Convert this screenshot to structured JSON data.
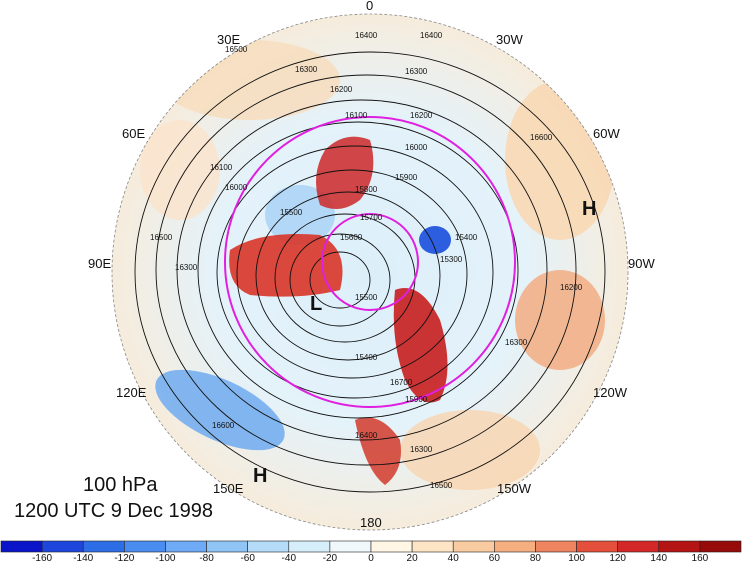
{
  "plot": {
    "level": "100 hPa",
    "time": "1200 UTC 9 Dec 1998"
  },
  "longitude_labels": [
    "0",
    "30W",
    "60W",
    "90W",
    "120W",
    "150W",
    "180",
    "150E",
    "120E",
    "90E",
    "60E",
    "30E"
  ],
  "pressure_centers": [
    {
      "label": "H",
      "lon": "60W"
    },
    {
      "label": "H",
      "lon": "150E"
    },
    {
      "label": "L",
      "lon": "near pole"
    }
  ],
  "contour_labels": [
    "16400",
    "16400",
    "16300",
    "16500",
    "16200",
    "16300",
    "16100",
    "16200",
    "16000",
    "15900",
    "15800",
    "15700",
    "15600",
    "15500",
    "15400",
    "15500",
    "16000",
    "16100",
    "16300",
    "16500",
    "16600",
    "16400",
    "16300",
    "16700",
    "16500",
    "15900",
    "15300",
    "15400",
    "16200",
    "16300",
    "16600"
  ],
  "colorbar": {
    "ticks": [
      "-160",
      "-140",
      "-120",
      "-100",
      "-80",
      "-60",
      "-40",
      "-20",
      "0",
      "20",
      "40",
      "60",
      "80",
      "100",
      "120",
      "140",
      "160"
    ],
    "colors": [
      "#0a14c8",
      "#1e46dc",
      "#2d6ee6",
      "#4a8cf0",
      "#6eaaf5",
      "#90c4f5",
      "#b4dcf8",
      "#d6eefa",
      "#f0f8fc",
      "#fff6e6",
      "#fce4c4",
      "#f8cca0",
      "#f4ae80",
      "#ee8460",
      "#e4503c",
      "#d42828",
      "#b41414",
      "#960a0a"
    ]
  }
}
